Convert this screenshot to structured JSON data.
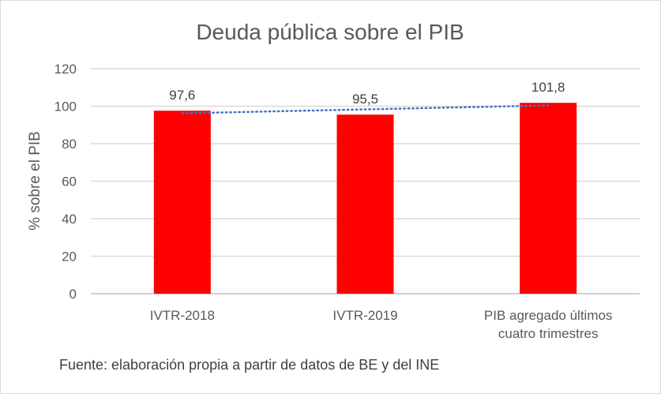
{
  "chart_data": {
    "type": "bar",
    "title": "Deuda pública sobre el PIB",
    "xlabel": "",
    "ylabel": "% sobre el PIB",
    "categories": [
      [
        "IVTR-2018"
      ],
      [
        "IVTR-2019"
      ],
      [
        "PIB agregado últimos",
        "cuatro trimestres"
      ]
    ],
    "values": [
      97.6,
      95.5,
      101.8
    ],
    "data_labels": [
      "97,6",
      "95,5",
      "101,8"
    ],
    "ylim": [
      0,
      120
    ],
    "yticks": [
      0,
      20,
      40,
      60,
      80,
      100,
      120
    ],
    "grid": true,
    "trendline": {
      "type": "linear",
      "style": "dotted",
      "color": "#4472c4"
    },
    "bar_color": "#ff0000"
  },
  "source": "Fuente: elaboración propia a partir de datos de BE y del INE"
}
